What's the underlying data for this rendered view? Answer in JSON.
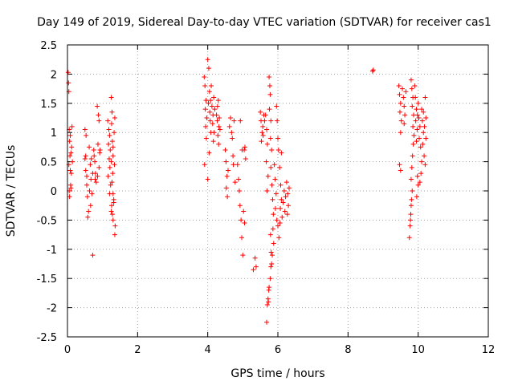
{
  "chart_data": {
    "type": "scatter",
    "title": "Day 149 of 2019, Sidereal Day-to-day VTEC variation (SDTVAR) for receiver cas1",
    "xlabel": "GPS time / hours",
    "ylabel": "SDTVAR / TECUs",
    "xlim": [
      0,
      12
    ],
    "ylim": [
      -2.5,
      2.5
    ],
    "x_ticks": [
      "0",
      "2",
      "4",
      "6",
      "8",
      "10",
      "12"
    ],
    "y_ticks": [
      "2.5",
      "2",
      "1.5",
      "1",
      "0.5",
      "0",
      "-0.5",
      "-1",
      "-1.5",
      "-2",
      "-2.5"
    ],
    "grid": true,
    "marker": "+",
    "color": "#ff0000",
    "series": [
      {
        "name": "SDTVAR",
        "points": [
          [
            0.02,
            2.03
          ],
          [
            0.03,
            1.85
          ],
          [
            0.04,
            1.7
          ],
          [
            0.05,
            1.05
          ],
          [
            0.06,
            0.85
          ],
          [
            0.07,
            0.6
          ],
          [
            0.08,
            0.35
          ],
          [
            0.09,
            0.1
          ],
          [
            0.1,
            0.05
          ],
          [
            0.06,
            -0.1
          ],
          [
            0.12,
            0.75
          ],
          [
            0.14,
            0.5
          ],
          [
            0.08,
            0.95
          ],
          [
            0.11,
            0.3
          ],
          [
            0.05,
            0.0
          ],
          [
            0.13,
            1.1
          ],
          [
            0.1,
            0.65
          ],
          [
            0.04,
            0.45
          ],
          [
            0.5,
            0.55
          ],
          [
            0.52,
            0.35
          ],
          [
            0.55,
            0.1
          ],
          [
            0.57,
            -0.1
          ],
          [
            0.6,
            -0.35
          ],
          [
            0.52,
            0.6
          ],
          [
            0.55,
            0.25
          ],
          [
            0.58,
            -0.45
          ],
          [
            0.5,
            1.05
          ],
          [
            0.53,
            0.95
          ],
          [
            0.62,
            0.75
          ],
          [
            0.65,
            0.45
          ],
          [
            0.67,
            0.2
          ],
          [
            0.7,
            -0.05
          ],
          [
            0.72,
            0.3
          ],
          [
            0.68,
            0.55
          ],
          [
            0.63,
            0.0
          ],
          [
            0.66,
            -0.25
          ],
          [
            0.75,
            0.7
          ],
          [
            0.78,
            0.5
          ],
          [
            0.8,
            0.3
          ],
          [
            0.82,
            0.15
          ],
          [
            0.76,
            0.6
          ],
          [
            0.79,
            0.2
          ],
          [
            0.72,
            -1.1
          ],
          [
            0.85,
            1.45
          ],
          [
            0.88,
            1.3
          ],
          [
            0.9,
            1.2
          ],
          [
            0.87,
            0.8
          ],
          [
            0.92,
            0.65
          ],
          [
            0.9,
            0.4
          ],
          [
            0.86,
            0.25
          ],
          [
            0.93,
            0.7
          ],
          [
            1.15,
            1.2
          ],
          [
            1.18,
            1.05
          ],
          [
            1.2,
            0.95
          ],
          [
            1.17,
            0.8
          ],
          [
            1.22,
            0.7
          ],
          [
            1.19,
            0.55
          ],
          [
            1.21,
            0.4
          ],
          [
            1.16,
            0.25
          ],
          [
            1.23,
            0.1
          ],
          [
            1.2,
            -0.05
          ],
          [
            1.25,
            1.6
          ],
          [
            1.27,
            1.35
          ],
          [
            1.26,
            1.15
          ],
          [
            1.28,
            0.85
          ],
          [
            1.3,
            0.6
          ],
          [
            1.25,
            0.5
          ],
          [
            1.29,
            0.3
          ],
          [
            1.27,
            0.15
          ],
          [
            1.3,
            -0.05
          ],
          [
            1.26,
            -0.25
          ],
          [
            1.28,
            -0.4
          ],
          [
            1.3,
            -0.5
          ],
          [
            1.25,
            -0.35
          ],
          [
            1.32,
            -0.2
          ],
          [
            1.3,
            0.75
          ],
          [
            1.33,
            1.0
          ],
          [
            1.35,
            1.25
          ],
          [
            1.36,
            -0.6
          ],
          [
            1.35,
            -0.75
          ],
          [
            1.32,
            -0.15
          ],
          [
            1.34,
            0.45
          ],
          [
            3.9,
            1.95
          ],
          [
            3.92,
            1.8
          ],
          [
            3.95,
            1.55
          ],
          [
            3.93,
            1.4
          ],
          [
            3.97,
            1.25
          ],
          [
            3.94,
            1.1
          ],
          [
            3.96,
            0.9
          ],
          [
            3.91,
            0.45
          ],
          [
            4.0,
            0.2
          ],
          [
            4.0,
            2.25
          ],
          [
            4.03,
            2.1
          ],
          [
            4.05,
            1.7
          ],
          [
            4.02,
            1.5
          ],
          [
            4.06,
            1.35
          ],
          [
            4.08,
            1.55
          ],
          [
            4.1,
            1.8
          ],
          [
            4.07,
            1.2
          ],
          [
            4.04,
            0.65
          ],
          [
            4.09,
            1.0
          ],
          [
            4.12,
            1.45
          ],
          [
            4.15,
            1.3
          ],
          [
            4.17,
            1.6
          ],
          [
            4.14,
            1.15
          ],
          [
            4.18,
            1.0
          ],
          [
            4.2,
            1.4
          ],
          [
            4.16,
            0.85
          ],
          [
            4.25,
            1.3
          ],
          [
            4.28,
            1.45
          ],
          [
            4.3,
            1.55
          ],
          [
            4.27,
            1.2
          ],
          [
            4.32,
            1.1
          ],
          [
            4.29,
            0.95
          ],
          [
            4.35,
            1.05
          ],
          [
            4.33,
            1.25
          ],
          [
            4.31,
            0.8
          ],
          [
            4.5,
            0.7
          ],
          [
            4.52,
            0.5
          ],
          [
            4.55,
            0.25
          ],
          [
            4.53,
            0.05
          ],
          [
            4.56,
            -0.1
          ],
          [
            4.58,
            0.35
          ],
          [
            4.62,
            1.1
          ],
          [
            4.65,
            1.25
          ],
          [
            4.68,
            1.0
          ],
          [
            4.7,
            0.9
          ],
          [
            4.72,
            0.6
          ],
          [
            4.75,
            1.2
          ],
          [
            4.73,
            0.45
          ],
          [
            4.78,
            0.15
          ],
          [
            4.85,
            0.45
          ],
          [
            4.88,
            0.2
          ],
          [
            4.9,
            0.0
          ],
          [
            4.92,
            -0.25
          ],
          [
            4.95,
            -0.5
          ],
          [
            4.97,
            -0.8
          ],
          [
            4.93,
            1.2
          ],
          [
            4.98,
            0.7
          ],
          [
            5.0,
            -1.1
          ],
          [
            5.02,
            -0.35
          ],
          [
            5.05,
            -0.55
          ],
          [
            5.04,
            0.7
          ],
          [
            5.06,
            0.75
          ],
          [
            5.08,
            0.55
          ],
          [
            5.35,
            -1.15
          ],
          [
            5.38,
            -1.3
          ],
          [
            5.3,
            -1.35
          ],
          [
            5.5,
            1.35
          ],
          [
            5.52,
            1.2
          ],
          [
            5.55,
            1.0
          ],
          [
            5.53,
            0.85
          ],
          [
            5.57,
            1.1
          ],
          [
            5.6,
            1.3
          ],
          [
            5.58,
            0.95
          ],
          [
            5.62,
            1.2
          ],
          [
            5.65,
            1.3
          ],
          [
            5.68,
            1.05
          ],
          [
            5.7,
            0.8
          ],
          [
            5.67,
            0.5
          ],
          [
            5.72,
            0.25
          ],
          [
            5.69,
            0.0
          ],
          [
            5.75,
            1.95
          ],
          [
            5.77,
            1.8
          ],
          [
            5.78,
            1.65
          ],
          [
            5.76,
            1.4
          ],
          [
            5.8,
            1.2
          ],
          [
            5.79,
            0.9
          ],
          [
            5.82,
            0.7
          ],
          [
            5.8,
            0.4
          ],
          [
            5.83,
            0.1
          ],
          [
            5.85,
            -0.15
          ],
          [
            5.87,
            -0.4
          ],
          [
            5.86,
            -0.65
          ],
          [
            5.88,
            -0.9
          ],
          [
            5.84,
            -1.1
          ],
          [
            5.82,
            -1.25
          ],
          [
            5.8,
            -1.3
          ],
          [
            5.78,
            -1.5
          ],
          [
            5.75,
            -1.65
          ],
          [
            5.73,
            -1.9
          ],
          [
            5.7,
            -1.95
          ],
          [
            5.68,
            -2.25
          ],
          [
            5.72,
            -1.85
          ],
          [
            5.74,
            -1.7
          ],
          [
            5.81,
            -1.05
          ],
          [
            5.79,
            -0.75
          ],
          [
            5.9,
            0.45
          ],
          [
            5.92,
            0.2
          ],
          [
            5.95,
            -0.05
          ],
          [
            5.93,
            -0.3
          ],
          [
            5.97,
            -0.5
          ],
          [
            5.96,
            1.45
          ],
          [
            5.98,
            1.2
          ],
          [
            6.0,
            0.9
          ],
          [
            6.02,
            0.7
          ],
          [
            6.05,
            0.4
          ],
          [
            6.08,
            0.1
          ],
          [
            6.1,
            -0.15
          ],
          [
            6.07,
            -0.3
          ],
          [
            6.12,
            -0.45
          ],
          [
            6.15,
            -0.2
          ],
          [
            6.18,
            0.0
          ],
          [
            6.2,
            -0.35
          ],
          [
            6.22,
            -0.1
          ],
          [
            6.25,
            0.15
          ],
          [
            6.28,
            -0.05
          ],
          [
            6.3,
            -0.25
          ],
          [
            6.27,
            -0.4
          ],
          [
            6.32,
            0.05
          ],
          [
            6.0,
            -0.6
          ],
          [
            6.03,
            -0.8
          ],
          [
            6.06,
            -0.55
          ],
          [
            6.1,
            0.65
          ],
          [
            8.7,
            2.05
          ],
          [
            8.72,
            2.07
          ],
          [
            9.45,
            1.8
          ],
          [
            9.47,
            1.65
          ],
          [
            9.5,
            1.5
          ],
          [
            9.48,
            1.35
          ],
          [
            9.52,
            1.2
          ],
          [
            9.5,
            1.0
          ],
          [
            9.47,
            0.45
          ],
          [
            9.5,
            0.35
          ],
          [
            9.55,
            1.75
          ],
          [
            9.58,
            1.6
          ],
          [
            9.6,
            1.45
          ],
          [
            9.62,
            1.3
          ],
          [
            9.6,
            1.15
          ],
          [
            9.65,
            1.7
          ],
          [
            9.8,
            1.9
          ],
          [
            9.82,
            1.75
          ],
          [
            9.85,
            1.6
          ],
          [
            9.83,
            1.45
          ],
          [
            9.87,
            1.3
          ],
          [
            9.85,
            1.1
          ],
          [
            9.88,
            0.95
          ],
          [
            9.86,
            0.8
          ],
          [
            9.84,
            0.6
          ],
          [
            9.82,
            0.4
          ],
          [
            9.8,
            0.2
          ],
          [
            9.83,
            0.0
          ],
          [
            9.81,
            -0.15
          ],
          [
            9.79,
            -0.4
          ],
          [
            9.77,
            -0.6
          ],
          [
            9.75,
            -0.8
          ],
          [
            9.78,
            -0.5
          ],
          [
            9.8,
            -0.25
          ],
          [
            9.9,
            1.8
          ],
          [
            9.92,
            1.6
          ],
          [
            9.95,
            1.4
          ],
          [
            9.93,
            1.2
          ],
          [
            9.97,
            1.05
          ],
          [
            9.95,
            0.85
          ],
          [
            9.98,
            1.3
          ],
          [
            10.0,
            1.5
          ],
          [
            10.02,
            1.25
          ],
          [
            10.05,
            1.1
          ],
          [
            10.03,
            0.9
          ],
          [
            10.07,
            0.75
          ],
          [
            10.1,
            0.5
          ],
          [
            10.08,
            0.3
          ],
          [
            10.05,
            0.15
          ],
          [
            10.1,
            1.4
          ],
          [
            10.12,
            1.2
          ],
          [
            10.15,
            1.0
          ],
          [
            10.13,
            0.8
          ],
          [
            10.17,
            0.6
          ],
          [
            10.2,
            0.45
          ],
          [
            10.18,
            1.1
          ],
          [
            10.22,
            1.25
          ],
          [
            10.2,
            1.6
          ],
          [
            10.22,
            0.9
          ],
          [
            10.15,
            1.35
          ],
          [
            9.98,
            0.25
          ],
          [
            10.0,
            0.1
          ],
          [
            9.96,
            -0.1
          ]
        ]
      }
    ]
  }
}
